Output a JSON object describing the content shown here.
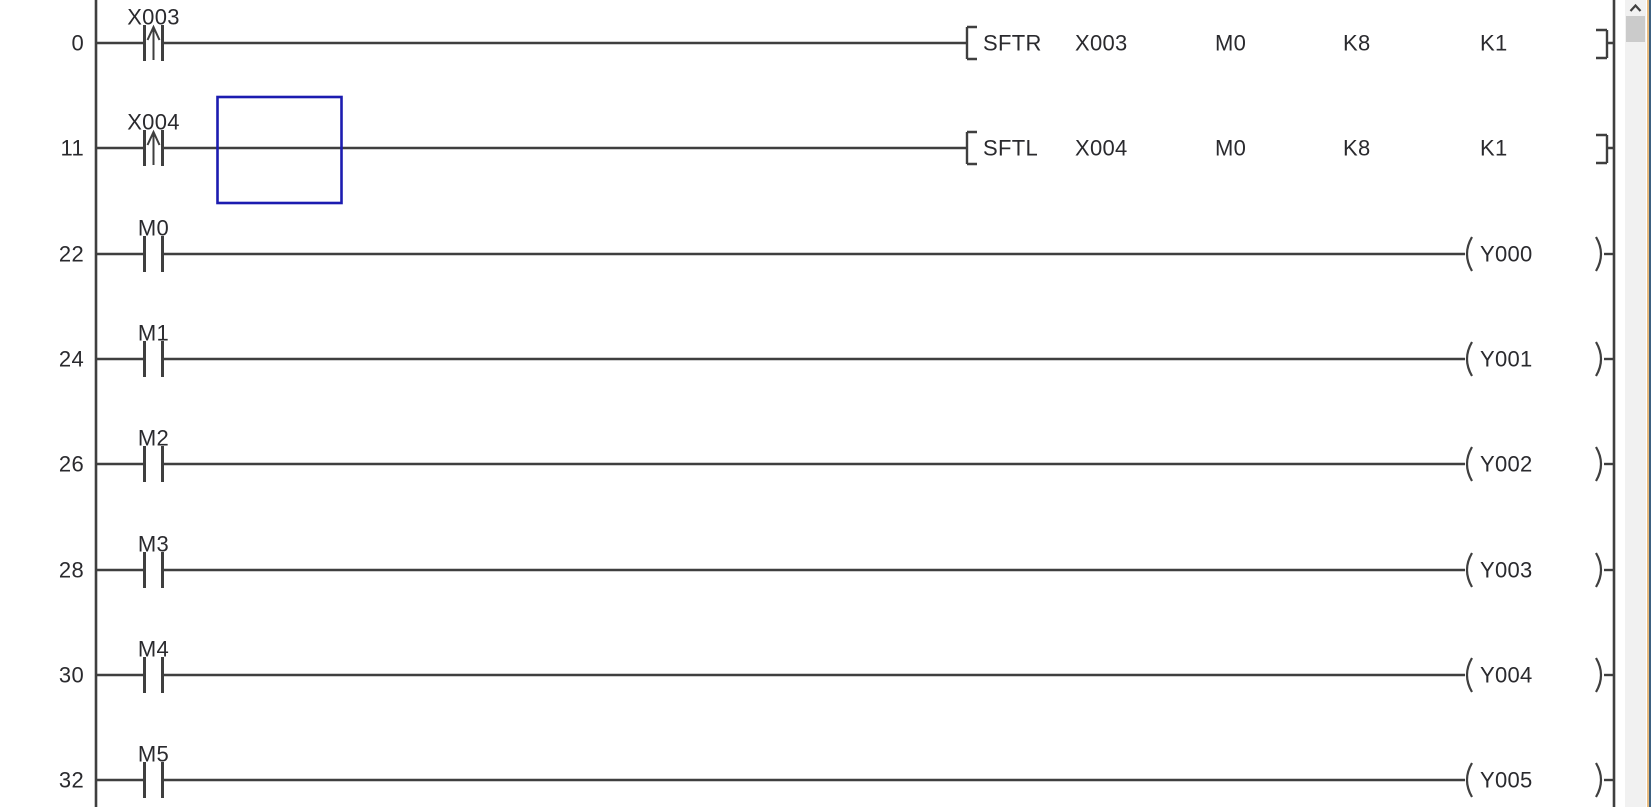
{
  "ladder": {
    "rungs": [
      {
        "step": "0",
        "contact": {
          "device": "X003",
          "type": "rising-edge"
        },
        "instruction": {
          "name": "SFTR",
          "operands": [
            "X003",
            "M0",
            "K8",
            "K1"
          ]
        }
      },
      {
        "step": "11",
        "contact": {
          "device": "X004",
          "type": "rising-edge"
        },
        "instruction": {
          "name": "SFTL",
          "operands": [
            "X004",
            "M0",
            "K8",
            "K1"
          ]
        },
        "cursor_selected": true
      },
      {
        "step": "22",
        "contact": {
          "device": "M0",
          "type": "normally-open"
        },
        "coil": {
          "device": "Y000"
        }
      },
      {
        "step": "24",
        "contact": {
          "device": "M1",
          "type": "normally-open"
        },
        "coil": {
          "device": "Y001"
        }
      },
      {
        "step": "26",
        "contact": {
          "device": "M2",
          "type": "normally-open"
        },
        "coil": {
          "device": "Y002"
        }
      },
      {
        "step": "28",
        "contact": {
          "device": "M3",
          "type": "normally-open"
        },
        "coil": {
          "device": "Y003"
        }
      },
      {
        "step": "30",
        "contact": {
          "device": "M4",
          "type": "normally-open"
        },
        "coil": {
          "device": "Y004"
        }
      },
      {
        "step": "32",
        "contact": {
          "device": "M5",
          "type": "normally-open"
        },
        "coil": {
          "device": "Y005"
        }
      }
    ]
  },
  "scrollbar": {
    "up_icon": "chevron-up"
  },
  "colors": {
    "background": "#ffffff",
    "line": "#3f3f3f",
    "text": "#2a2a2e",
    "cursor_box": "#1c1cb0",
    "scroll_track": "#f1f1f1",
    "scroll_thumb": "#cbcbcb",
    "scroll_arrow": "#404040",
    "edge_accent": "#e7bc82",
    "edge_border": "#3d6080"
  }
}
